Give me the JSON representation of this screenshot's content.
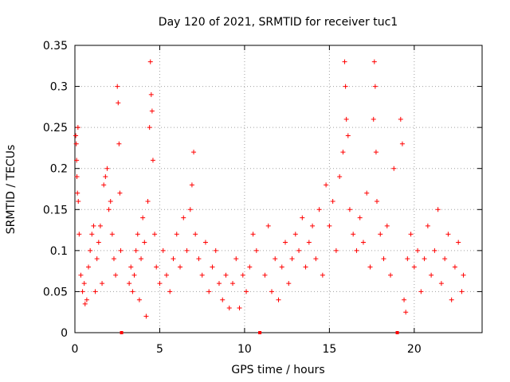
{
  "chart_data": {
    "type": "scatter",
    "title": "Day 120 of 2021, SRMTID for receiver tuc1",
    "xlabel": "GPS time / hours",
    "ylabel": "SRMTID / TECUs",
    "xlim": [
      0,
      24
    ],
    "ylim": [
      0,
      0.35
    ],
    "xticks": [
      0,
      5,
      10,
      15,
      20
    ],
    "xtick_labels": [
      "0",
      "5",
      "10",
      "15",
      "20"
    ],
    "yticks": [
      0,
      0.05,
      0.1,
      0.15,
      0.2,
      0.25,
      0.3,
      0.35
    ],
    "ytick_labels": [
      "0",
      "0.05",
      "0.1",
      "0.15",
      "0.2",
      "0.25",
      "0.3",
      "0.35"
    ],
    "grid": true,
    "marker": "+",
    "color": "#ff0000",
    "gap_markers_x": [
      2.75,
      10.9,
      19.0
    ],
    "series": [
      {
        "name": "SRMTID",
        "points": [
          [
            0.05,
            0.24
          ],
          [
            0.08,
            0.23
          ],
          [
            0.1,
            0.21
          ],
          [
            0.12,
            0.19
          ],
          [
            0.15,
            0.17
          ],
          [
            0.18,
            0.25
          ],
          [
            0.2,
            0.16
          ],
          [
            0.25,
            0.12
          ],
          [
            0.35,
            0.07
          ],
          [
            0.45,
            0.05
          ],
          [
            0.55,
            0.06
          ],
          [
            0.6,
            0.035
          ],
          [
            0.7,
            0.04
          ],
          [
            0.8,
            0.08
          ],
          [
            0.9,
            0.1
          ],
          [
            1.0,
            0.12
          ],
          [
            1.1,
            0.13
          ],
          [
            1.2,
            0.05
          ],
          [
            1.3,
            0.09
          ],
          [
            1.4,
            0.11
          ],
          [
            1.5,
            0.13
          ],
          [
            1.6,
            0.06
          ],
          [
            1.7,
            0.18
          ],
          [
            1.8,
            0.19
          ],
          [
            1.9,
            0.2
          ],
          [
            2.0,
            0.15
          ],
          [
            2.1,
            0.16
          ],
          [
            2.2,
            0.12
          ],
          [
            2.3,
            0.09
          ],
          [
            2.4,
            0.07
          ],
          [
            2.5,
            0.3
          ],
          [
            2.55,
            0.28
          ],
          [
            2.6,
            0.23
          ],
          [
            2.65,
            0.17
          ],
          [
            2.7,
            0.1
          ],
          [
            3.2,
            0.06
          ],
          [
            3.3,
            0.08
          ],
          [
            3.4,
            0.05
          ],
          [
            3.5,
            0.07
          ],
          [
            3.6,
            0.1
          ],
          [
            3.7,
            0.12
          ],
          [
            3.8,
            0.04
          ],
          [
            3.9,
            0.09
          ],
          [
            4.0,
            0.14
          ],
          [
            4.1,
            0.11
          ],
          [
            4.2,
            0.02
          ],
          [
            4.3,
            0.16
          ],
          [
            4.4,
            0.25
          ],
          [
            4.45,
            0.33
          ],
          [
            4.5,
            0.29
          ],
          [
            4.55,
            0.27
          ],
          [
            4.6,
            0.21
          ],
          [
            4.7,
            0.12
          ],
          [
            4.8,
            0.08
          ],
          [
            5.0,
            0.06
          ],
          [
            5.2,
            0.1
          ],
          [
            5.4,
            0.07
          ],
          [
            5.6,
            0.05
          ],
          [
            5.8,
            0.09
          ],
          [
            6.0,
            0.12
          ],
          [
            6.2,
            0.08
          ],
          [
            6.4,
            0.14
          ],
          [
            6.6,
            0.1
          ],
          [
            6.8,
            0.15
          ],
          [
            6.9,
            0.18
          ],
          [
            7.0,
            0.22
          ],
          [
            7.1,
            0.12
          ],
          [
            7.3,
            0.09
          ],
          [
            7.5,
            0.07
          ],
          [
            7.7,
            0.11
          ],
          [
            7.9,
            0.05
          ],
          [
            8.1,
            0.08
          ],
          [
            8.3,
            0.1
          ],
          [
            8.5,
            0.06
          ],
          [
            8.7,
            0.04
          ],
          [
            8.9,
            0.07
          ],
          [
            9.1,
            0.03
          ],
          [
            9.3,
            0.06
          ],
          [
            9.5,
            0.09
          ],
          [
            9.7,
            0.03
          ],
          [
            9.9,
            0.07
          ],
          [
            10.1,
            0.05
          ],
          [
            10.3,
            0.08
          ],
          [
            10.5,
            0.12
          ],
          [
            10.7,
            0.1
          ],
          [
            11.2,
            0.07
          ],
          [
            11.4,
            0.13
          ],
          [
            11.6,
            0.05
          ],
          [
            11.8,
            0.09
          ],
          [
            12.0,
            0.04
          ],
          [
            12.2,
            0.08
          ],
          [
            12.4,
            0.11
          ],
          [
            12.6,
            0.06
          ],
          [
            12.8,
            0.09
          ],
          [
            13.0,
            0.12
          ],
          [
            13.2,
            0.1
          ],
          [
            13.4,
            0.14
          ],
          [
            13.6,
            0.08
          ],
          [
            13.8,
            0.11
          ],
          [
            14.0,
            0.13
          ],
          [
            14.2,
            0.09
          ],
          [
            14.4,
            0.15
          ],
          [
            14.6,
            0.07
          ],
          [
            14.8,
            0.18
          ],
          [
            15.0,
            0.13
          ],
          [
            15.2,
            0.16
          ],
          [
            15.4,
            0.1
          ],
          [
            15.6,
            0.19
          ],
          [
            15.8,
            0.22
          ],
          [
            15.9,
            0.33
          ],
          [
            15.95,
            0.3
          ],
          [
            16.0,
            0.26
          ],
          [
            16.1,
            0.24
          ],
          [
            16.2,
            0.15
          ],
          [
            16.4,
            0.12
          ],
          [
            16.6,
            0.1
          ],
          [
            16.8,
            0.14
          ],
          [
            17.0,
            0.11
          ],
          [
            17.2,
            0.17
          ],
          [
            17.4,
            0.08
          ],
          [
            17.6,
            0.26
          ],
          [
            17.65,
            0.33
          ],
          [
            17.7,
            0.3
          ],
          [
            17.75,
            0.22
          ],
          [
            17.8,
            0.16
          ],
          [
            18.0,
            0.12
          ],
          [
            18.2,
            0.09
          ],
          [
            18.4,
            0.13
          ],
          [
            18.6,
            0.07
          ],
          [
            18.8,
            0.2
          ],
          [
            19.2,
            0.26
          ],
          [
            19.3,
            0.23
          ],
          [
            19.4,
            0.04
          ],
          [
            19.5,
            0.025
          ],
          [
            19.6,
            0.09
          ],
          [
            19.8,
            0.12
          ],
          [
            20.0,
            0.08
          ],
          [
            20.2,
            0.1
          ],
          [
            20.4,
            0.05
          ],
          [
            20.6,
            0.09
          ],
          [
            20.8,
            0.13
          ],
          [
            21.0,
            0.07
          ],
          [
            21.2,
            0.1
          ],
          [
            21.4,
            0.15
          ],
          [
            21.6,
            0.06
          ],
          [
            21.8,
            0.09
          ],
          [
            22.0,
            0.12
          ],
          [
            22.2,
            0.04
          ],
          [
            22.4,
            0.08
          ],
          [
            22.6,
            0.11
          ],
          [
            22.8,
            0.05
          ],
          [
            22.9,
            0.07
          ]
        ]
      }
    ]
  }
}
